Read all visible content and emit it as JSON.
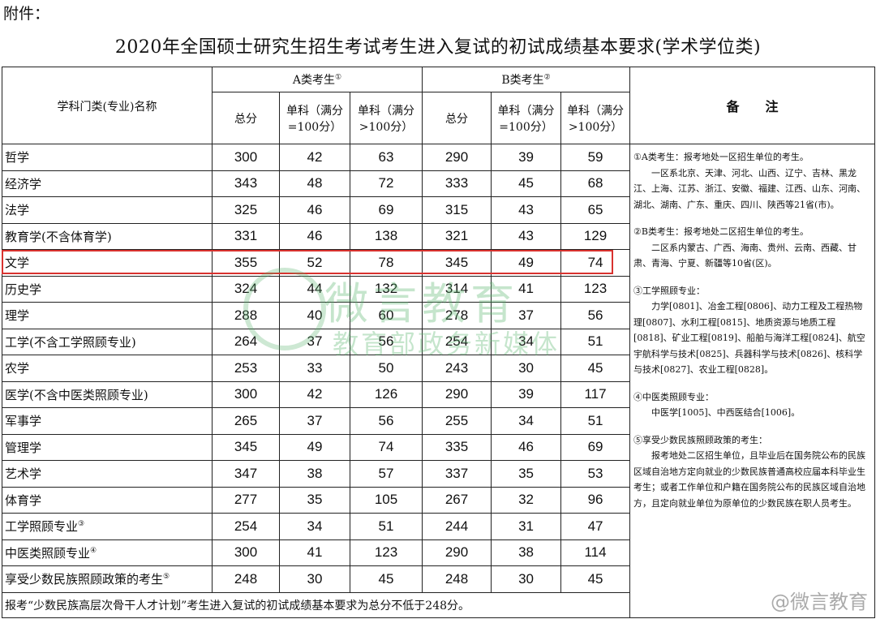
{
  "attachment_label": "附件：",
  "title": "2020年全国硕士研究生招生考试考生进入复试的初试成绩基本要求(学术学位类)",
  "headers": {
    "subject": "学科门类(专业)名称",
    "group_a": "A类考生",
    "group_a_mark": "①",
    "group_b": "B类考生",
    "group_b_mark": "②",
    "total": "总分",
    "single100": "单科（满分=100分）",
    "single_gt100": "单科（满分>100分）",
    "notes": "备　　注"
  },
  "rows": [
    {
      "name": "哲学",
      "mark": "",
      "a": [
        "300",
        "42",
        "63"
      ],
      "b": [
        "290",
        "39",
        "59"
      ]
    },
    {
      "name": "经济学",
      "mark": "",
      "a": [
        "343",
        "48",
        "72"
      ],
      "b": [
        "333",
        "45",
        "68"
      ]
    },
    {
      "name": "法学",
      "mark": "",
      "a": [
        "325",
        "46",
        "69"
      ],
      "b": [
        "315",
        "43",
        "65"
      ]
    },
    {
      "name": "教育学(不含体育学)",
      "mark": "",
      "a": [
        "331",
        "46",
        "138"
      ],
      "b": [
        "321",
        "43",
        "129"
      ]
    },
    {
      "name": "文学",
      "mark": "",
      "a": [
        "355",
        "52",
        "78"
      ],
      "b": [
        "345",
        "49",
        "74"
      ]
    },
    {
      "name": "历史学",
      "mark": "",
      "a": [
        "324",
        "44",
        "132"
      ],
      "b": [
        "314",
        "41",
        "123"
      ]
    },
    {
      "name": "理学",
      "mark": "",
      "a": [
        "288",
        "40",
        "60"
      ],
      "b": [
        "278",
        "37",
        "56"
      ]
    },
    {
      "name": "工学(不含工学照顾专业)",
      "mark": "",
      "a": [
        "264",
        "37",
        "56"
      ],
      "b": [
        "254",
        "34",
        "51"
      ]
    },
    {
      "name": "农学",
      "mark": "",
      "a": [
        "253",
        "33",
        "50"
      ],
      "b": [
        "243",
        "30",
        "45"
      ]
    },
    {
      "name": "医学(不含中医类照顾专业)",
      "mark": "",
      "a": [
        "300",
        "42",
        "126"
      ],
      "b": [
        "290",
        "39",
        "117"
      ]
    },
    {
      "name": "军事学",
      "mark": "",
      "a": [
        "265",
        "37",
        "56"
      ],
      "b": [
        "255",
        "34",
        "51"
      ]
    },
    {
      "name": "管理学",
      "mark": "",
      "a": [
        "345",
        "49",
        "74"
      ],
      "b": [
        "335",
        "46",
        "69"
      ]
    },
    {
      "name": "艺术学",
      "mark": "",
      "a": [
        "347",
        "38",
        "57"
      ],
      "b": [
        "337",
        "35",
        "53"
      ]
    },
    {
      "name": "体育学",
      "mark": "",
      "a": [
        "277",
        "35",
        "105"
      ],
      "b": [
        "267",
        "32",
        "96"
      ]
    },
    {
      "name": "工学照顾专业",
      "mark": "③",
      "a": [
        "254",
        "34",
        "51"
      ],
      "b": [
        "244",
        "31",
        "47"
      ]
    },
    {
      "name": "中医类照顾专业",
      "mark": "④",
      "a": [
        "300",
        "41",
        "123"
      ],
      "b": [
        "290",
        "38",
        "114"
      ]
    },
    {
      "name": "享受少数民族照顾政策的考生",
      "mark": "⑤",
      "a": [
        "248",
        "30",
        "45"
      ],
      "b": [
        "248",
        "30",
        "45"
      ]
    }
  ],
  "footer": "报考“少数民族高层次骨干人才计划”考生进入复试的初试成绩基本要求为总分不低于248分。",
  "notes": [
    {
      "head": "①A类考生：报考地处一区招生单位的考生。",
      "body": "一区系北京、天津、河北、山西、辽宁、吉林、黑龙江、上海、江苏、浙江、安徽、福建、江西、山东、河南、湖北、湖南、广东、重庆、四川、陕西等21省(市)。"
    },
    {
      "head": "②B类考生：报考地处二区招生单位的考生。",
      "body": "二区系内蒙古、广西、海南、贵州、云南、西藏、甘肃、青海、宁夏、新疆等10省(区)。"
    },
    {
      "head": "③工学照顾专业：",
      "body": "力学[0801]、冶金工程[0806]、动力工程及工程热物理[0807]、水利工程[0815]、地质资源与地质工程[0818]、矿业工程[0819]、船舶与海洋工程[0824]、航空宇航科学与技术[0825]、兵器科学与技术[0826]、核科学与技术[0827]、农业工程[0828]。"
    },
    {
      "head": "④中医类照顾专业：",
      "body": "中医学[1005]、中西医结合[1006]。"
    },
    {
      "head": "⑤享受少数民族照顾政策的考生：",
      "body": "报考地处二区招生单位，且毕业后在国务院公布的民族区域自治地方定向就业的少数民族普通高校应届本科毕业生考生；或者工作单位和户籍在国务院公布的民族区域自治地方，且定向就业单位为原单位的少数民族在职人员考生。"
    }
  ],
  "highlight_color": "#d8322f",
  "watermark": {
    "line1": "微言教育",
    "line2": "教育部政务新媒体"
  },
  "weibo_mark": "@微言教育"
}
